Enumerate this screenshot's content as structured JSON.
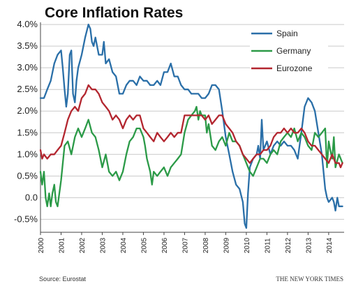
{
  "chart_data": {
    "type": "line",
    "title": "Core Inflation Rates",
    "source": "Source: Eurostat",
    "credit": "THE NEW YORK TIMES",
    "xlim": [
      2000,
      2014.75
    ],
    "ylim": [
      -0.8,
      4.05
    ],
    "x_ticks": [
      2000,
      2001,
      2002,
      2003,
      2004,
      2005,
      2006,
      2007,
      2008,
      2009,
      2010,
      2011,
      2012,
      2013,
      2014
    ],
    "x_tick_labels": [
      "2000",
      "2001",
      "2002",
      "2003",
      "2004",
      "2005",
      "2006",
      "2007",
      "2008",
      "2009",
      "2010",
      "2011",
      "2012",
      "2013",
      "2014"
    ],
    "y_ticks": [
      -0.5,
      0,
      0.5,
      1,
      1.5,
      2,
      2.5,
      3,
      3.5,
      4
    ],
    "y_tick_labels": [
      "-0.5%",
      "0.0",
      "0.5%",
      "1.0%",
      "1.5%",
      "2.0%",
      "2.5%",
      "3.0%",
      "3.5%",
      "4.0%"
    ],
    "grid": "horizontal",
    "legend_position": "top-right",
    "series": [
      {
        "name": "Spain",
        "color": "#2a6fa8",
        "points": [
          [
            2000.0,
            2.3
          ],
          [
            2000.17,
            2.3
          ],
          [
            2000.33,
            2.5
          ],
          [
            2000.5,
            2.7
          ],
          [
            2000.67,
            3.1
          ],
          [
            2000.83,
            3.3
          ],
          [
            2001.0,
            3.4
          ],
          [
            2001.08,
            3.0
          ],
          [
            2001.17,
            2.5
          ],
          [
            2001.25,
            2.1
          ],
          [
            2001.33,
            2.4
          ],
          [
            2001.42,
            3.3
          ],
          [
            2001.5,
            3.4
          ],
          [
            2001.58,
            2.4
          ],
          [
            2001.67,
            2.2
          ],
          [
            2001.75,
            2.7
          ],
          [
            2001.83,
            3.0
          ],
          [
            2002.0,
            3.3
          ],
          [
            2002.17,
            3.7
          ],
          [
            2002.33,
            4.0
          ],
          [
            2002.42,
            3.9
          ],
          [
            2002.5,
            3.6
          ],
          [
            2002.58,
            3.5
          ],
          [
            2002.67,
            3.7
          ],
          [
            2002.83,
            3.3
          ],
          [
            2003.0,
            3.3
          ],
          [
            2003.08,
            3.6
          ],
          [
            2003.17,
            3.1
          ],
          [
            2003.33,
            3.2
          ],
          [
            2003.5,
            2.9
          ],
          [
            2003.67,
            2.8
          ],
          [
            2003.83,
            2.4
          ],
          [
            2004.0,
            2.4
          ],
          [
            2004.17,
            2.6
          ],
          [
            2004.33,
            2.7
          ],
          [
            2004.5,
            2.7
          ],
          [
            2004.67,
            2.6
          ],
          [
            2004.83,
            2.8
          ],
          [
            2005.0,
            2.7
          ],
          [
            2005.17,
            2.7
          ],
          [
            2005.33,
            2.6
          ],
          [
            2005.5,
            2.6
          ],
          [
            2005.67,
            2.7
          ],
          [
            2005.83,
            2.6
          ],
          [
            2006.0,
            2.9
          ],
          [
            2006.17,
            2.9
          ],
          [
            2006.33,
            3.1
          ],
          [
            2006.5,
            2.8
          ],
          [
            2006.67,
            2.8
          ],
          [
            2006.83,
            2.6
          ],
          [
            2007.0,
            2.5
          ],
          [
            2007.17,
            2.5
          ],
          [
            2007.33,
            2.4
          ],
          [
            2007.5,
            2.4
          ],
          [
            2007.67,
            2.4
          ],
          [
            2007.83,
            2.3
          ],
          [
            2008.0,
            2.3
          ],
          [
            2008.17,
            2.4
          ],
          [
            2008.33,
            2.6
          ],
          [
            2008.5,
            2.6
          ],
          [
            2008.67,
            2.5
          ],
          [
            2008.83,
            2.0
          ],
          [
            2009.0,
            1.4
          ],
          [
            2009.17,
            1.0
          ],
          [
            2009.33,
            0.6
          ],
          [
            2009.5,
            0.3
          ],
          [
            2009.67,
            0.2
          ],
          [
            2009.83,
            -0.1
          ],
          [
            2009.92,
            -0.6
          ],
          [
            2010.0,
            -0.7
          ],
          [
            2010.08,
            0.1
          ],
          [
            2010.17,
            0.7
          ],
          [
            2010.33,
            0.9
          ],
          [
            2010.5,
            1.0
          ],
          [
            2010.58,
            1.2
          ],
          [
            2010.67,
            0.9
          ],
          [
            2010.75,
            1.8
          ],
          [
            2010.83,
            1.1
          ],
          [
            2011.0,
            1.3
          ],
          [
            2011.17,
            1.0
          ],
          [
            2011.33,
            1.2
          ],
          [
            2011.5,
            1.3
          ],
          [
            2011.67,
            1.2
          ],
          [
            2011.83,
            1.3
          ],
          [
            2012.0,
            1.2
          ],
          [
            2012.17,
            1.2
          ],
          [
            2012.33,
            1.1
          ],
          [
            2012.5,
            0.9
          ],
          [
            2012.67,
            1.5
          ],
          [
            2012.83,
            2.1
          ],
          [
            2013.0,
            2.3
          ],
          [
            2013.17,
            2.2
          ],
          [
            2013.33,
            2.0
          ],
          [
            2013.5,
            1.5
          ],
          [
            2013.67,
            1.0
          ],
          [
            2013.83,
            0.2
          ],
          [
            2013.92,
            0.0
          ],
          [
            2014.0,
            -0.1
          ],
          [
            2014.17,
            0.0
          ],
          [
            2014.25,
            -0.1
          ],
          [
            2014.33,
            -0.3
          ],
          [
            2014.42,
            0.0
          ],
          [
            2014.5,
            -0.2
          ],
          [
            2014.58,
            -0.2
          ],
          [
            2014.67,
            -0.2
          ]
        ]
      },
      {
        "name": "Germany",
        "color": "#2b9a47",
        "points": [
          [
            2000.0,
            0.6
          ],
          [
            2000.08,
            0.3
          ],
          [
            2000.17,
            0.6
          ],
          [
            2000.25,
            0.0
          ],
          [
            2000.33,
            -0.2
          ],
          [
            2000.42,
            0.1
          ],
          [
            2000.5,
            -0.2
          ],
          [
            2000.58,
            0.1
          ],
          [
            2000.67,
            0.3
          ],
          [
            2000.75,
            -0.1
          ],
          [
            2000.83,
            -0.2
          ],
          [
            2001.0,
            0.4
          ],
          [
            2001.17,
            1.2
          ],
          [
            2001.33,
            1.3
          ],
          [
            2001.5,
            1.0
          ],
          [
            2001.67,
            1.4
          ],
          [
            2001.83,
            1.6
          ],
          [
            2002.0,
            1.4
          ],
          [
            2002.17,
            1.6
          ],
          [
            2002.33,
            1.8
          ],
          [
            2002.5,
            1.5
          ],
          [
            2002.67,
            1.4
          ],
          [
            2002.83,
            1.1
          ],
          [
            2003.0,
            0.7
          ],
          [
            2003.17,
            1.0
          ],
          [
            2003.33,
            0.6
          ],
          [
            2003.5,
            0.5
          ],
          [
            2003.67,
            0.6
          ],
          [
            2003.83,
            0.4
          ],
          [
            2004.0,
            0.6
          ],
          [
            2004.17,
            1.0
          ],
          [
            2004.33,
            1.3
          ],
          [
            2004.5,
            1.4
          ],
          [
            2004.67,
            1.6
          ],
          [
            2004.83,
            1.6
          ],
          [
            2005.0,
            1.4
          ],
          [
            2005.08,
            1.2
          ],
          [
            2005.17,
            0.9
          ],
          [
            2005.33,
            0.6
          ],
          [
            2005.42,
            0.3
          ],
          [
            2005.5,
            0.6
          ],
          [
            2005.67,
            0.5
          ],
          [
            2005.83,
            0.6
          ],
          [
            2006.0,
            0.7
          ],
          [
            2006.17,
            0.5
          ],
          [
            2006.33,
            0.7
          ],
          [
            2006.5,
            0.8
          ],
          [
            2006.67,
            0.9
          ],
          [
            2006.83,
            1.0
          ],
          [
            2007.0,
            1.5
          ],
          [
            2007.17,
            1.8
          ],
          [
            2007.33,
            1.9
          ],
          [
            2007.5,
            2.0
          ],
          [
            2007.58,
            2.1
          ],
          [
            2007.67,
            1.8
          ],
          [
            2007.75,
            2.0
          ],
          [
            2007.83,
            1.9
          ],
          [
            2008.0,
            1.9
          ],
          [
            2008.08,
            1.5
          ],
          [
            2008.17,
            1.7
          ],
          [
            2008.33,
            1.2
          ],
          [
            2008.5,
            1.1
          ],
          [
            2008.67,
            1.3
          ],
          [
            2008.83,
            1.4
          ],
          [
            2009.0,
            1.2
          ],
          [
            2009.17,
            1.5
          ],
          [
            2009.33,
            1.3
          ],
          [
            2009.5,
            1.3
          ],
          [
            2009.67,
            1.2
          ],
          [
            2009.83,
            1.0
          ],
          [
            2010.0,
            0.8
          ],
          [
            2010.17,
            0.6
          ],
          [
            2010.33,
            0.5
          ],
          [
            2010.5,
            0.7
          ],
          [
            2010.67,
            0.9
          ],
          [
            2010.83,
            0.9
          ],
          [
            2011.0,
            0.8
          ],
          [
            2011.17,
            1.0
          ],
          [
            2011.33,
            1.1
          ],
          [
            2011.5,
            1.0
          ],
          [
            2011.67,
            1.3
          ],
          [
            2011.83,
            1.4
          ],
          [
            2012.0,
            1.5
          ],
          [
            2012.17,
            1.4
          ],
          [
            2012.33,
            1.6
          ],
          [
            2012.5,
            1.3
          ],
          [
            2012.67,
            1.5
          ],
          [
            2012.83,
            1.4
          ],
          [
            2013.0,
            1.2
          ],
          [
            2013.17,
            1.1
          ],
          [
            2013.33,
            1.5
          ],
          [
            2013.5,
            1.4
          ],
          [
            2013.67,
            1.5
          ],
          [
            2013.83,
            1.6
          ],
          [
            2013.92,
            0.7
          ],
          [
            2014.0,
            1.3
          ],
          [
            2014.08,
            1.1
          ],
          [
            2014.17,
            0.9
          ],
          [
            2014.25,
            1.4
          ],
          [
            2014.33,
            0.7
          ],
          [
            2014.5,
            1.0
          ],
          [
            2014.67,
            0.8
          ]
        ]
      },
      {
        "name": "Eurozone",
        "color": "#b3262f",
        "points": [
          [
            2000.0,
            1.1
          ],
          [
            2000.08,
            0.9
          ],
          [
            2000.17,
            1.0
          ],
          [
            2000.33,
            0.9
          ],
          [
            2000.5,
            1.0
          ],
          [
            2000.67,
            1.0
          ],
          [
            2000.83,
            1.1
          ],
          [
            2001.0,
            1.2
          ],
          [
            2001.17,
            1.5
          ],
          [
            2001.33,
            1.8
          ],
          [
            2001.5,
            2.0
          ],
          [
            2001.67,
            2.1
          ],
          [
            2001.83,
            2.0
          ],
          [
            2002.0,
            2.3
          ],
          [
            2002.17,
            2.4
          ],
          [
            2002.33,
            2.6
          ],
          [
            2002.5,
            2.5
          ],
          [
            2002.67,
            2.5
          ],
          [
            2002.83,
            2.4
          ],
          [
            2003.0,
            2.2
          ],
          [
            2003.17,
            2.1
          ],
          [
            2003.33,
            2.0
          ],
          [
            2003.5,
            1.8
          ],
          [
            2003.67,
            1.9
          ],
          [
            2003.83,
            1.8
          ],
          [
            2004.0,
            1.6
          ],
          [
            2004.17,
            1.8
          ],
          [
            2004.33,
            1.9
          ],
          [
            2004.5,
            1.8
          ],
          [
            2004.67,
            1.9
          ],
          [
            2004.83,
            1.9
          ],
          [
            2005.0,
            1.6
          ],
          [
            2005.17,
            1.5
          ],
          [
            2005.33,
            1.4
          ],
          [
            2005.5,
            1.3
          ],
          [
            2005.67,
            1.5
          ],
          [
            2005.83,
            1.4
          ],
          [
            2006.0,
            1.3
          ],
          [
            2006.17,
            1.4
          ],
          [
            2006.33,
            1.5
          ],
          [
            2006.5,
            1.4
          ],
          [
            2006.67,
            1.5
          ],
          [
            2006.83,
            1.5
          ],
          [
            2007.0,
            1.9
          ],
          [
            2007.17,
            1.9
          ],
          [
            2007.33,
            1.9
          ],
          [
            2007.5,
            1.9
          ],
          [
            2007.67,
            1.9
          ],
          [
            2007.83,
            1.9
          ],
          [
            2008.0,
            1.8
          ],
          [
            2008.17,
            1.9
          ],
          [
            2008.33,
            1.7
          ],
          [
            2008.5,
            1.8
          ],
          [
            2008.67,
            1.9
          ],
          [
            2008.83,
            1.9
          ],
          [
            2009.0,
            1.7
          ],
          [
            2009.17,
            1.6
          ],
          [
            2009.33,
            1.5
          ],
          [
            2009.5,
            1.3
          ],
          [
            2009.67,
            1.2
          ],
          [
            2009.83,
            1.0
          ],
          [
            2010.0,
            0.9
          ],
          [
            2010.17,
            0.8
          ],
          [
            2010.33,
            0.9
          ],
          [
            2010.5,
            1.0
          ],
          [
            2010.67,
            1.0
          ],
          [
            2010.83,
            1.1
          ],
          [
            2011.0,
            1.1
          ],
          [
            2011.17,
            1.2
          ],
          [
            2011.33,
            1.4
          ],
          [
            2011.5,
            1.5
          ],
          [
            2011.67,
            1.5
          ],
          [
            2011.83,
            1.6
          ],
          [
            2012.0,
            1.5
          ],
          [
            2012.17,
            1.6
          ],
          [
            2012.33,
            1.5
          ],
          [
            2012.5,
            1.5
          ],
          [
            2012.67,
            1.6
          ],
          [
            2012.83,
            1.5
          ],
          [
            2013.0,
            1.3
          ],
          [
            2013.17,
            1.2
          ],
          [
            2013.33,
            1.2
          ],
          [
            2013.5,
            1.1
          ],
          [
            2013.67,
            1.0
          ],
          [
            2013.83,
            0.9
          ],
          [
            2014.0,
            0.8
          ],
          [
            2014.17,
            1.0
          ],
          [
            2014.33,
            0.8
          ],
          [
            2014.5,
            0.8
          ],
          [
            2014.58,
            0.7
          ],
          [
            2014.67,
            0.8
          ]
        ]
      }
    ]
  }
}
